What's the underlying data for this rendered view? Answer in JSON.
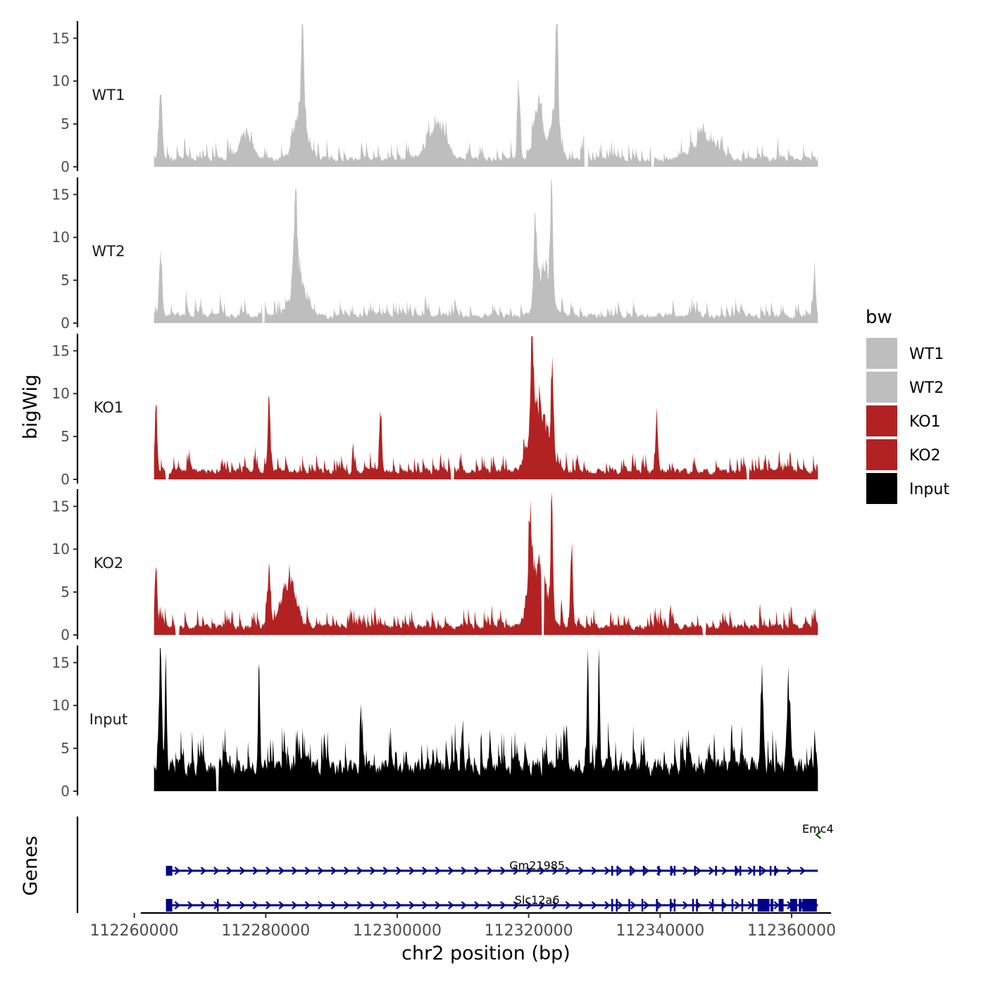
{
  "chart_data": {
    "type": "area",
    "xlabel": "chr2 position (bp)",
    "ylabel": "bigWig",
    "genes_label": "Genes",
    "x_range": [
      112263000,
      112364000
    ],
    "xlim": [
      112261000,
      112366000
    ],
    "ylim": [
      0,
      17
    ],
    "yticks": [
      0,
      5,
      10,
      15
    ],
    "xticks": [
      112260000,
      112280000,
      112300000,
      112320000,
      112340000,
      112360000
    ],
    "xtick_labels": [
      "112260000",
      "112280000",
      "112300000",
      "112320000",
      "112340000",
      "112360000"
    ],
    "grid": false,
    "legend": {
      "title": "bw",
      "position": "right",
      "entries": [
        {
          "label": "WT1",
          "color": "#bebebe"
        },
        {
          "label": "WT2",
          "color": "#bebebe"
        },
        {
          "label": "KO1",
          "color": "#b22222"
        },
        {
          "label": "KO2",
          "color": "#b22222"
        },
        {
          "label": "Input",
          "color": "#000000"
        }
      ]
    },
    "series": [
      {
        "name": "WT1",
        "color": "#bebebe",
        "baseline": 1.2,
        "noise": 1.7,
        "peaks": [
          {
            "pos": 112264000,
            "height": 7.5,
            "width": 600
          },
          {
            "pos": 112277000,
            "height": 3.5,
            "width": 2000
          },
          {
            "pos": 112285600,
            "height": 13.5,
            "width": 400
          },
          {
            "pos": 112285300,
            "height": 6,
            "width": 2000
          },
          {
            "pos": 112306000,
            "height": 4,
            "width": 3000
          },
          {
            "pos": 112318500,
            "height": 10.2,
            "width": 500
          },
          {
            "pos": 112321500,
            "height": 7.5,
            "width": 1500
          },
          {
            "pos": 112324300,
            "height": 13.5,
            "width": 400
          },
          {
            "pos": 112324000,
            "height": 7,
            "width": 1500
          },
          {
            "pos": 112347000,
            "height": 2.5,
            "width": 4000
          }
        ],
        "gaps": [
          [
            112328500,
            112329000
          ],
          [
            112338700,
            112339000
          ]
        ]
      },
      {
        "name": "WT2",
        "color": "#bebebe",
        "baseline": 1.2,
        "noise": 1.6,
        "peaks": [
          {
            "pos": 112264000,
            "height": 8,
            "width": 500
          },
          {
            "pos": 112284500,
            "height": 9.5,
            "width": 600
          },
          {
            "pos": 112285000,
            "height": 5,
            "width": 2200
          },
          {
            "pos": 112321000,
            "height": 9,
            "width": 600
          },
          {
            "pos": 112323500,
            "height": 13.8,
            "width": 400
          },
          {
            "pos": 112322500,
            "height": 6,
            "width": 2200
          },
          {
            "pos": 112363500,
            "height": 6,
            "width": 400
          }
        ],
        "gaps": [
          [
            112279500,
            112279800
          ]
        ]
      },
      {
        "name": "KO1",
        "color": "#b22222",
        "baseline": 1.3,
        "noise": 1.7,
        "peaks": [
          {
            "pos": 112263300,
            "height": 9.5,
            "width": 400
          },
          {
            "pos": 112280500,
            "height": 9,
            "width": 400
          },
          {
            "pos": 112297500,
            "height": 6.5,
            "width": 400
          },
          {
            "pos": 112320500,
            "height": 15.2,
            "width": 400
          },
          {
            "pos": 112321500,
            "height": 8.5,
            "width": 2800
          },
          {
            "pos": 112323600,
            "height": 13,
            "width": 400
          },
          {
            "pos": 112339500,
            "height": 6,
            "width": 400
          }
        ],
        "gaps": [
          [
            112264800,
            112265200
          ],
          [
            112308200,
            112308600
          ],
          [
            112353200,
            112353500
          ]
        ]
      },
      {
        "name": "KO2",
        "color": "#b22222",
        "baseline": 1.3,
        "noise": 1.7,
        "peaks": [
          {
            "pos": 112263300,
            "height": 9,
            "width": 400
          },
          {
            "pos": 112280500,
            "height": 6.5,
            "width": 600
          },
          {
            "pos": 112283500,
            "height": 6,
            "width": 2500
          },
          {
            "pos": 112320200,
            "height": 10.5,
            "width": 500
          },
          {
            "pos": 112321500,
            "height": 7.5,
            "width": 2800
          },
          {
            "pos": 112323500,
            "height": 13.5,
            "width": 400
          },
          {
            "pos": 112326500,
            "height": 8,
            "width": 400
          }
        ],
        "gaps": [
          [
            112266300,
            112266800
          ],
          [
            112322000,
            112322300
          ],
          [
            112346500,
            112346900
          ]
        ]
      },
      {
        "name": "Input",
        "color": "#000000",
        "baseline": 3.8,
        "noise": 3.6,
        "peaks": [
          {
            "pos": 112264000,
            "height": 16.5,
            "width": 400
          },
          {
            "pos": 112264800,
            "height": 15.5,
            "width": 300
          },
          {
            "pos": 112279000,
            "height": 15.5,
            "width": 300
          },
          {
            "pos": 112329000,
            "height": 15.5,
            "width": 300
          },
          {
            "pos": 112330700,
            "height": 13.5,
            "width": 300
          },
          {
            "pos": 112355500,
            "height": 12,
            "width": 500
          },
          {
            "pos": 112359500,
            "height": 11.5,
            "width": 500
          }
        ],
        "gaps": [
          [
            112272500,
            112272800
          ]
        ]
      }
    ],
    "genes": [
      {
        "name": "Emc4",
        "strand": "-",
        "color": "#006400",
        "start": 112364000,
        "end": 112364500,
        "row": 0,
        "exons": []
      },
      {
        "name": "Gm21985",
        "strand": "+",
        "color": "#00008b",
        "start": 112265000,
        "end": 112364000,
        "row": 1,
        "exons": [
          112265300,
          112332700,
          112333500,
          112335500,
          112337500,
          112339800,
          112341700,
          112342200,
          112345300,
          112348500,
          112351500,
          112352200,
          112354300,
          112355200,
          112356800,
          112357500
        ]
      },
      {
        "name": "Slc12a6",
        "strand": "+",
        "color": "#00008b",
        "start": 112265000,
        "end": 112364000,
        "row": 2,
        "exons": [
          112265300,
          112272700,
          112332700,
          112333400,
          112335300,
          112337300,
          112339500,
          112341600,
          112342200,
          112345000,
          112345600,
          112348000,
          112349500,
          112351000,
          112352500,
          112354100,
          112355200,
          112356100,
          112357000,
          112358400,
          112360300,
          112361300,
          112362000,
          112362700,
          112363300
        ]
      }
    ]
  }
}
